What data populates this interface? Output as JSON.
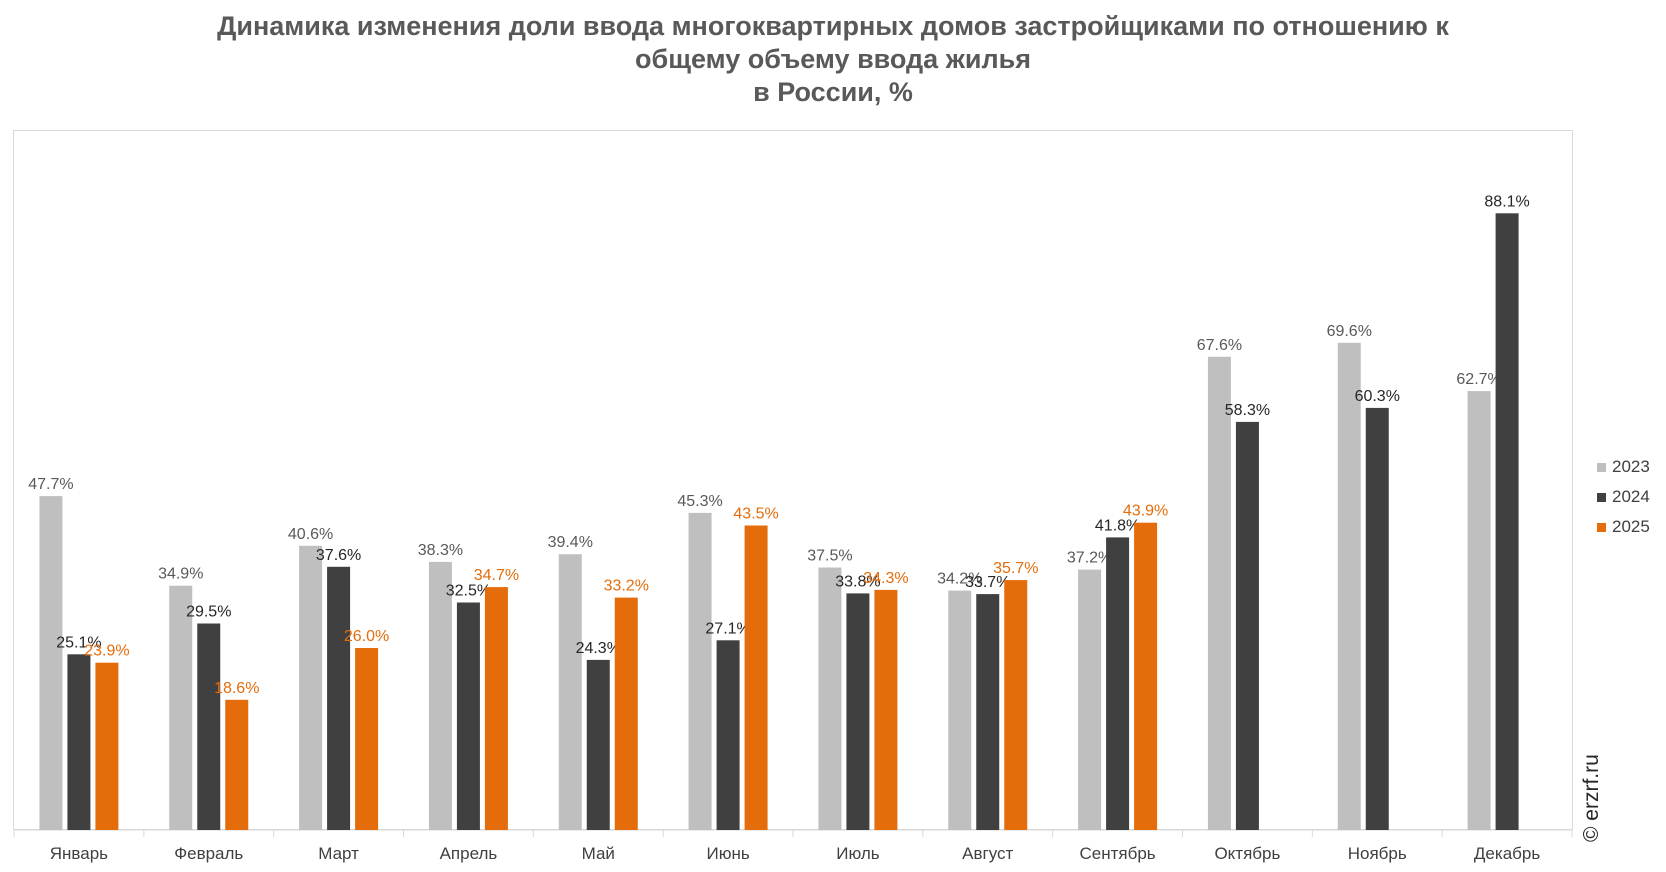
{
  "title_lines": [
    "Динамика изменения доли ввода многоквартирных домов застройщиками по отношению к",
    "общему объему ввода жилья",
    "в России, %"
  ],
  "watermark": "© erzrf.ru",
  "colors": {
    "2023": "#bfbfbf",
    "2024": "#404040",
    "2025": "#e46c0a"
  },
  "chart_data": {
    "type": "bar",
    "title": "Динамика изменения доли ввода многоквартирных домов застройщиками по отношению к общему объему ввода жилья в России, %",
    "categories": [
      "Январь",
      "Февраль",
      "Март",
      "Апрель",
      "Май",
      "Июнь",
      "Июль",
      "Август",
      "Сентябрь",
      "Октябрь",
      "Ноябрь",
      "Декабрь"
    ],
    "series": [
      {
        "name": "2023",
        "values": [
          47.7,
          34.9,
          40.6,
          38.3,
          39.4,
          45.3,
          37.5,
          34.2,
          37.2,
          67.6,
          69.6,
          62.7
        ]
      },
      {
        "name": "2024",
        "values": [
          25.1,
          29.5,
          37.6,
          32.5,
          24.3,
          27.1,
          33.8,
          33.7,
          41.8,
          58.3,
          60.3,
          88.1
        ]
      },
      {
        "name": "2025",
        "values": [
          23.9,
          18.6,
          26.0,
          34.7,
          33.2,
          43.5,
          34.3,
          35.7,
          43.9,
          null,
          null,
          null
        ]
      }
    ],
    "value_suffix": "%",
    "ylim": [
      0,
      100
    ],
    "grid": false,
    "legend_position": "right",
    "data_labels": true
  }
}
